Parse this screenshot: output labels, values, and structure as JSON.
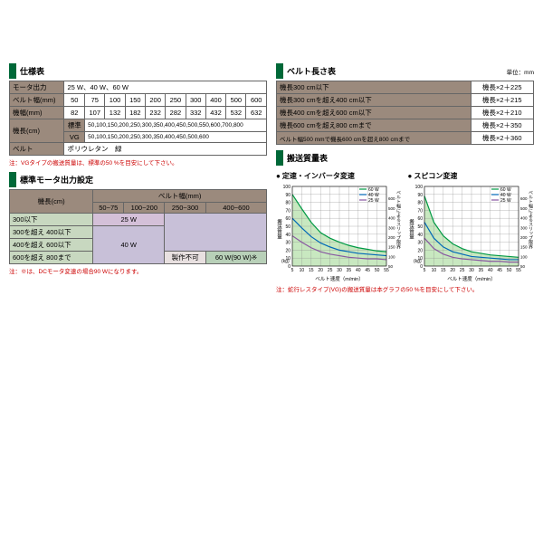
{
  "spec": {
    "title": "仕様表",
    "rows": [
      {
        "label": "モータ出力",
        "cells": [
          "25 W、40 W、60 W"
        ],
        "span": 10
      },
      {
        "label": "ベルト幅(mm)",
        "cells": [
          "50",
          "75",
          "100",
          "150",
          "200",
          "250",
          "300",
          "400",
          "500",
          "600"
        ]
      },
      {
        "label": "機幅(mm)",
        "cells": [
          "82",
          "107",
          "132",
          "182",
          "232",
          "282",
          "332",
          "432",
          "532",
          "632"
        ]
      }
    ],
    "len_label": "機長(cm)",
    "len_rows": [
      {
        "sub": "標準",
        "val": "50,100,150,200,250,300,350,400,450,500,550,600,700,800"
      },
      {
        "sub": "VG",
        "val": "50,100,150,200,250,300,350,400,450,500,600"
      }
    ],
    "belt": {
      "label": "ベルト",
      "val": "ポリウレタン　緑"
    },
    "note": "注：VGタイプの搬送質量は、標準の50 %を目安にして下さい。"
  },
  "beltlen": {
    "title": "ベルト長さ表",
    "unit": "単位：mm",
    "rows": [
      {
        "cond": "機長300 cm以下",
        "calc": "機長×2＋225"
      },
      {
        "cond": "機長300 cmを超え400 cm以下",
        "calc": "機長×2＋215"
      },
      {
        "cond": "機長400 cmを超え600 cm以下",
        "calc": "機長×2＋210"
      },
      {
        "cond": "機長600 cmを超え800 cmまで",
        "calc": "機長×2＋350"
      },
      {
        "cond": "ベルト幅500 mmで機長600 cmを超え800 cmまで",
        "calc": "機長×2＋360"
      }
    ]
  },
  "motor": {
    "title": "標準モータ出力設定",
    "col_header": "ベルト幅(mm)",
    "row_header": "機長(cm)",
    "cols": [
      "50~75",
      "100~200",
      "250~300",
      "400~600"
    ],
    "rows": [
      "300以下",
      "300を超え 400以下",
      "400を超え 600以下",
      "600を超え 800まで"
    ],
    "v25": "25 W",
    "v40": "40 W",
    "v60": "60 W(90 W)※",
    "na": "製作不可",
    "note": "注：※は、DCモータ変速の場合90 Wになります。"
  },
  "mass": {
    "title": "搬送質量表",
    "chart1_title": "定速・インバータ変速",
    "chart2_title": "スピコン変速",
    "xlabel": "ベルト速度（m/min）",
    "ylabel_left": "搬送質量",
    "ylabel_left_unit": "(kg)",
    "ylabel_right": "ベルト幅によるスリップ限界",
    "ylabel_right_unit": "mm",
    "legend": [
      {
        "label": "60 W",
        "color": "#009944"
      },
      {
        "label": "40 W",
        "color": "#0068b7"
      },
      {
        "label": "25 W",
        "color": "#8957a1"
      }
    ],
    "yticks": [
      0,
      10,
      20,
      30,
      40,
      50,
      60,
      70,
      80,
      90,
      100
    ],
    "xticks": [
      5,
      10,
      15,
      20,
      25,
      30,
      35,
      40,
      45,
      50,
      55
    ],
    "yticks_right": [
      50,
      100,
      150,
      200,
      300,
      400,
      500,
      600
    ],
    "chart1_series": {
      "60W": [
        [
          5,
          90
        ],
        [
          10,
          72
        ],
        [
          15,
          55
        ],
        [
          20,
          42
        ],
        [
          25,
          35
        ],
        [
          30,
          30
        ],
        [
          35,
          26
        ],
        [
          40,
          23
        ],
        [
          45,
          21
        ],
        [
          50,
          19
        ],
        [
          55,
          18
        ]
      ],
      "40W": [
        [
          5,
          60
        ],
        [
          10,
          48
        ],
        [
          15,
          37
        ],
        [
          20,
          29
        ],
        [
          25,
          24
        ],
        [
          30,
          20
        ],
        [
          35,
          18
        ],
        [
          40,
          16
        ],
        [
          45,
          15
        ],
        [
          50,
          14
        ],
        [
          55,
          13
        ]
      ],
      "25W": [
        [
          5,
          38
        ],
        [
          10,
          30
        ],
        [
          15,
          23
        ],
        [
          20,
          18
        ],
        [
          25,
          15
        ],
        [
          30,
          13
        ],
        [
          35,
          11
        ],
        [
          40,
          10
        ],
        [
          45,
          9
        ],
        [
          50,
          9
        ],
        [
          55,
          8
        ]
      ]
    },
    "chart2_series": {
      "60W": [
        [
          5,
          88
        ],
        [
          10,
          55
        ],
        [
          15,
          38
        ],
        [
          20,
          28
        ],
        [
          25,
          22
        ],
        [
          30,
          18
        ],
        [
          35,
          16
        ],
        [
          40,
          14
        ],
        [
          45,
          13
        ],
        [
          50,
          12
        ],
        [
          55,
          11
        ]
      ],
      "40W": [
        [
          5,
          55
        ],
        [
          10,
          35
        ],
        [
          15,
          24
        ],
        [
          20,
          18
        ],
        [
          25,
          15
        ],
        [
          30,
          12
        ],
        [
          35,
          11
        ],
        [
          40,
          10
        ],
        [
          45,
          9
        ],
        [
          50,
          8
        ],
        [
          55,
          8
        ]
      ],
      "25W": [
        [
          5,
          35
        ],
        [
          10,
          22
        ],
        [
          15,
          15
        ],
        [
          20,
          11
        ],
        [
          25,
          9
        ],
        [
          30,
          8
        ],
        [
          35,
          7
        ],
        [
          40,
          6
        ],
        [
          45,
          6
        ],
        [
          50,
          5
        ],
        [
          55,
          5
        ]
      ]
    },
    "fill_color": "#c8e8c0",
    "grid_color": "#888",
    "note": "注：蛇行レスタイプ(VG)の搬送質量は本グラフの50 %を目安にして下さい。"
  }
}
